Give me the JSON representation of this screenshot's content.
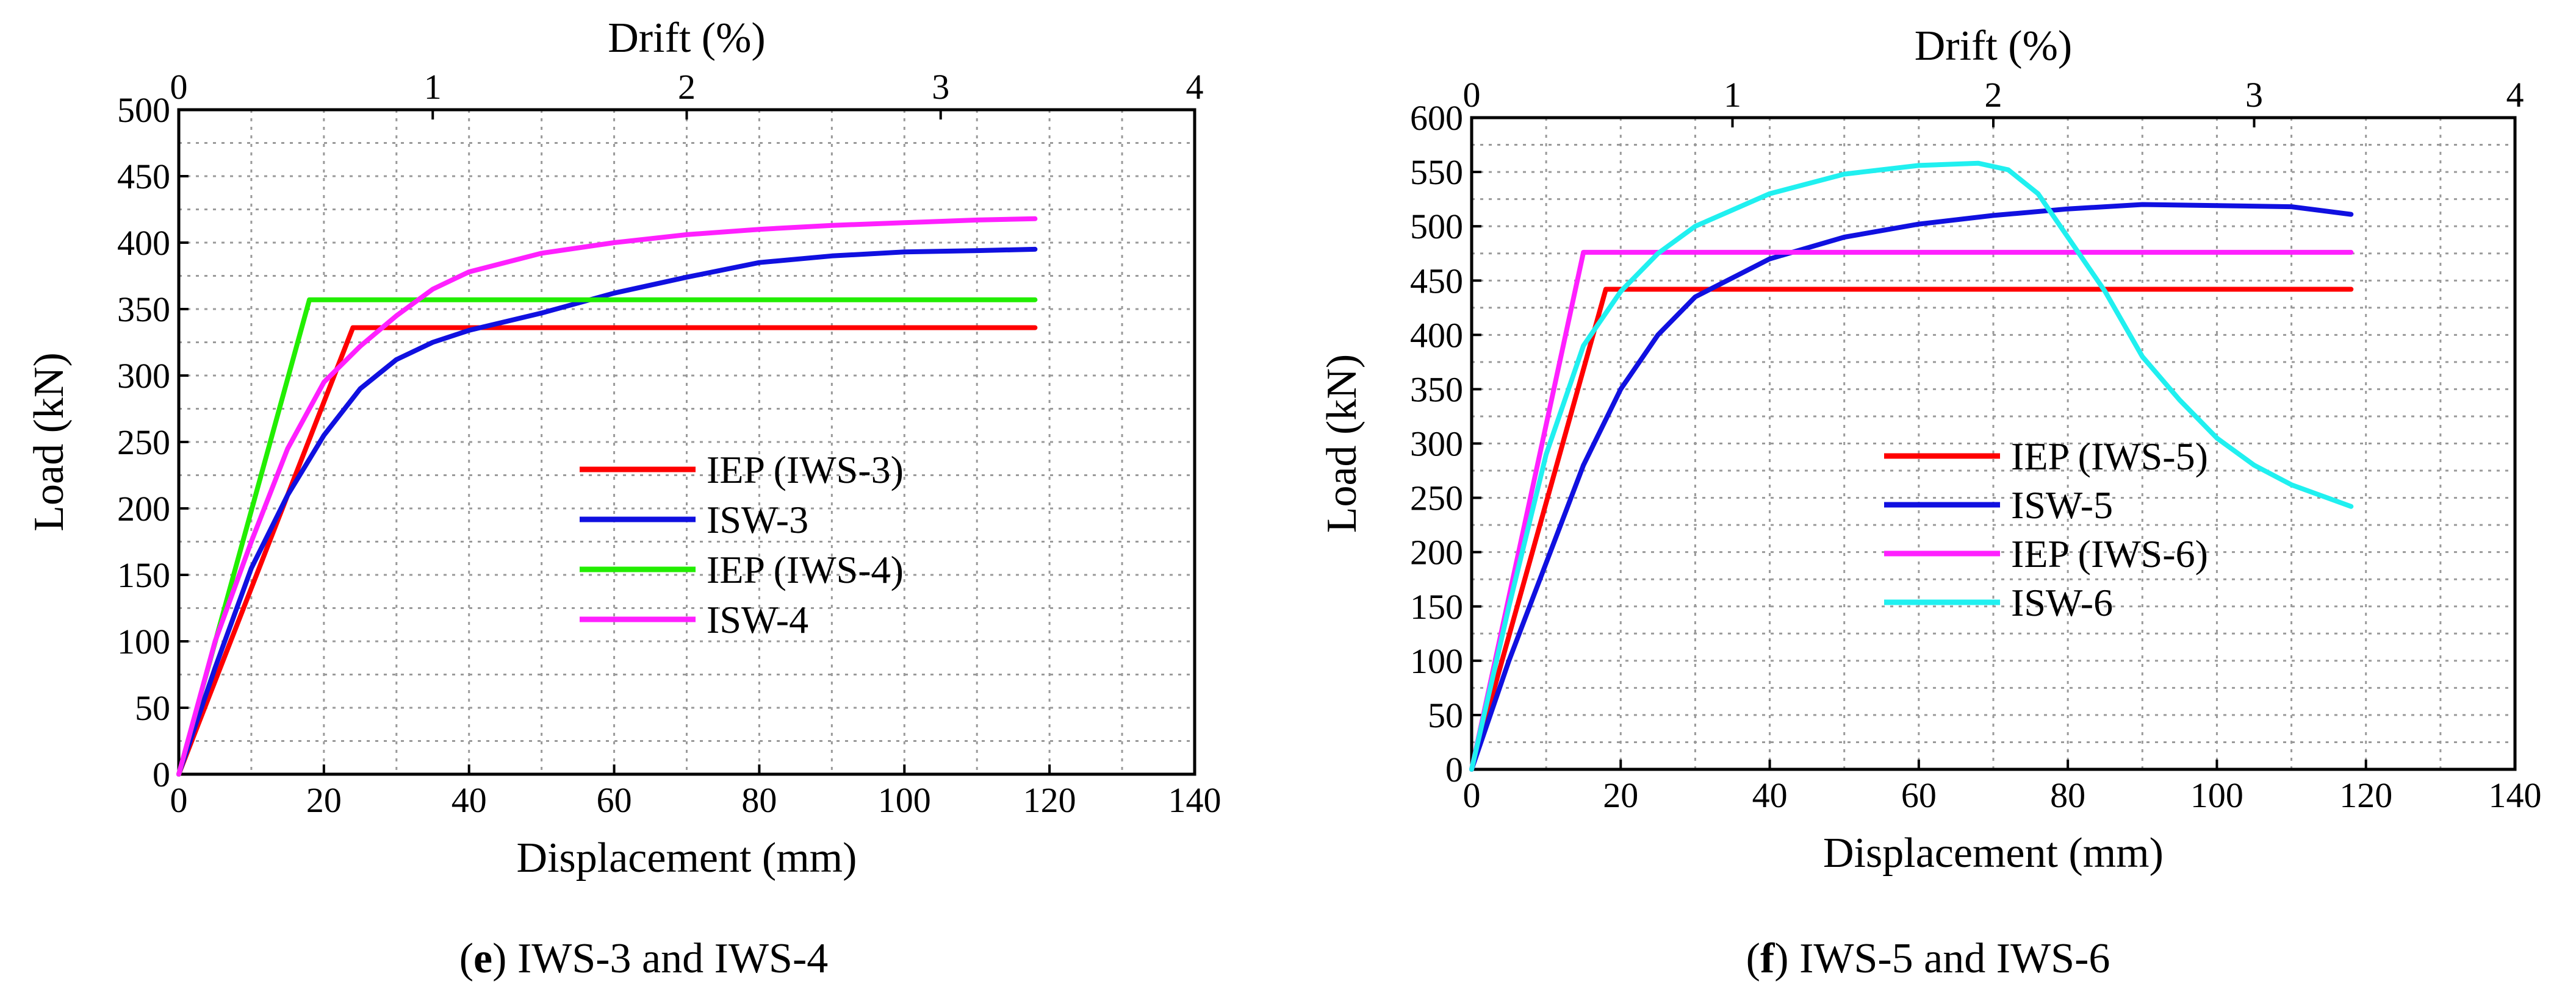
{
  "colors": {
    "red": "#ff0000",
    "blue": "#1010e0",
    "green": "#22ee00",
    "magenta": "#ff20ff",
    "cyan": "#20f0f0"
  },
  "chart_data": [
    {
      "type": "line",
      "caption_letter": "e",
      "caption_text": " IWS-3 and IWS-4",
      "xlabel": "Displacement (mm)",
      "ylabel": "Load (kN)",
      "x2label": "Drift (%)",
      "xlim": [
        0,
        140
      ],
      "ylim": [
        0,
        500
      ],
      "x2lim": [
        0,
        4
      ],
      "xticks": [
        0,
        20,
        40,
        60,
        80,
        100,
        120,
        140
      ],
      "yticks": [
        0,
        50,
        100,
        150,
        200,
        250,
        300,
        350,
        400,
        450,
        500
      ],
      "x2ticks": [
        0,
        1,
        2,
        3,
        4
      ],
      "grid": true,
      "legend_position": "lower-right",
      "series": [
        {
          "name": "IEP (IWS-3)",
          "color": "red",
          "points": [
            [
              0,
              0
            ],
            [
              24,
              336
            ],
            [
              118,
              336
            ]
          ]
        },
        {
          "name": "ISW-3",
          "color": "blue",
          "points": [
            [
              0,
              0
            ],
            [
              5,
              80
            ],
            [
              10,
              155
            ],
            [
              15,
              210
            ],
            [
              20,
              255
            ],
            [
              25,
              290
            ],
            [
              30,
              312
            ],
            [
              35,
              325
            ],
            [
              40,
              334
            ],
            [
              50,
              347
            ],
            [
              60,
              362
            ],
            [
              70,
              374
            ],
            [
              80,
              385
            ],
            [
              90,
              390
            ],
            [
              100,
              393
            ],
            [
              110,
              394
            ],
            [
              118,
              395
            ]
          ]
        },
        {
          "name": "IEP (IWS-4)",
          "color": "green",
          "points": [
            [
              0,
              0
            ],
            [
              18,
              357
            ],
            [
              118,
              357
            ]
          ]
        },
        {
          "name": "ISW-4",
          "color": "magenta",
          "points": [
            [
              0,
              0
            ],
            [
              5,
              100
            ],
            [
              10,
              175
            ],
            [
              15,
              245
            ],
            [
              20,
              295
            ],
            [
              25,
              322
            ],
            [
              30,
              345
            ],
            [
              35,
              365
            ],
            [
              40,
              378
            ],
            [
              50,
              392
            ],
            [
              60,
              400
            ],
            [
              70,
              406
            ],
            [
              80,
              410
            ],
            [
              90,
              413
            ],
            [
              100,
              415
            ],
            [
              110,
              417
            ],
            [
              118,
              418
            ]
          ]
        }
      ]
    },
    {
      "type": "line",
      "caption_letter": "f",
      "caption_text": " IWS-5 and IWS-6",
      "xlabel": "Displacement (mm)",
      "ylabel": "Load (kN)",
      "x2label": "Drift (%)",
      "xlim": [
        0,
        140
      ],
      "ylim": [
        0,
        600
      ],
      "x2lim": [
        0,
        4
      ],
      "xticks": [
        0,
        20,
        40,
        60,
        80,
        100,
        120,
        140
      ],
      "yticks": [
        0,
        50,
        100,
        150,
        200,
        250,
        300,
        350,
        400,
        450,
        500,
        550,
        600
      ],
      "x2ticks": [
        0,
        1,
        2,
        3,
        4
      ],
      "grid": true,
      "legend_position": "center-right",
      "series": [
        {
          "name": "IEP (IWS-5)",
          "color": "red",
          "points": [
            [
              0,
              0
            ],
            [
              18,
              442
            ],
            [
              118,
              442
            ]
          ]
        },
        {
          "name": "ISW-5",
          "color": "blue",
          "points": [
            [
              0,
              0
            ],
            [
              5,
              100
            ],
            [
              10,
              190
            ],
            [
              15,
              280
            ],
            [
              20,
              350
            ],
            [
              25,
              400
            ],
            [
              30,
              435
            ],
            [
              40,
              470
            ],
            [
              50,
              490
            ],
            [
              60,
              502
            ],
            [
              70,
              510
            ],
            [
              80,
              516
            ],
            [
              90,
              520
            ],
            [
              100,
              519
            ],
            [
              110,
              518
            ],
            [
              118,
              511
            ]
          ]
        },
        {
          "name": "IEP (IWS-6)",
          "color": "magenta",
          "points": [
            [
              0,
              0
            ],
            [
              15,
              476
            ],
            [
              118,
              476
            ]
          ]
        },
        {
          "name": "ISW-6",
          "color": "cyan",
          "points": [
            [
              0,
              0
            ],
            [
              5,
              150
            ],
            [
              10,
              290
            ],
            [
              15,
              390
            ],
            [
              20,
              440
            ],
            [
              25,
              475
            ],
            [
              30,
              500
            ],
            [
              40,
              530
            ],
            [
              50,
              548
            ],
            [
              60,
              556
            ],
            [
              68,
              558
            ],
            [
              72,
              552
            ],
            [
              76,
              530
            ],
            [
              80,
              490
            ],
            [
              85,
              440
            ],
            [
              90,
              380
            ],
            [
              95,
              340
            ],
            [
              100,
              305
            ],
            [
              105,
              280
            ],
            [
              110,
              262
            ],
            [
              118,
              242
            ]
          ]
        }
      ]
    }
  ]
}
